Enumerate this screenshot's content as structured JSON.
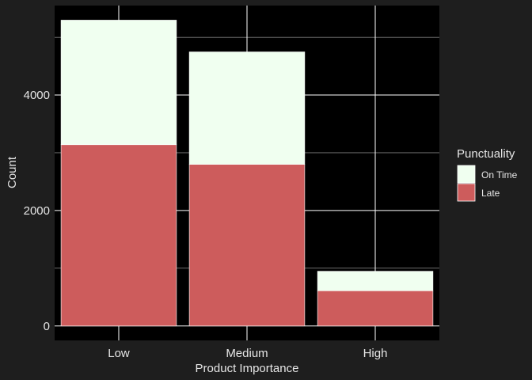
{
  "chart_data": {
    "type": "bar",
    "stacked": true,
    "xlabel": "Product Importance",
    "ylabel": "Count",
    "categories": [
      "Low",
      "Medium",
      "High"
    ],
    "series": [
      {
        "name": "Late",
        "values": [
          3140,
          2800,
          610
        ],
        "color": "#cd5c5c"
      },
      {
        "name": "On Time",
        "values": [
          2157,
          1947,
          338
        ],
        "color": "#f0fff0"
      }
    ],
    "ylim": [
      -250,
      5550
    ],
    "yticks": [
      0,
      2000,
      4000
    ],
    "grid": true,
    "legend": {
      "title": "Punctuality",
      "placement": "right",
      "entries": [
        {
          "label": "On Time",
          "color": "#f0fff0"
        },
        {
          "label": "Late",
          "color": "#cd5c5c"
        }
      ]
    },
    "background": "#000000",
    "outer_background": "#1e1e1e",
    "grid_color": "#ffffff",
    "text_color": "#e6e6e6"
  }
}
